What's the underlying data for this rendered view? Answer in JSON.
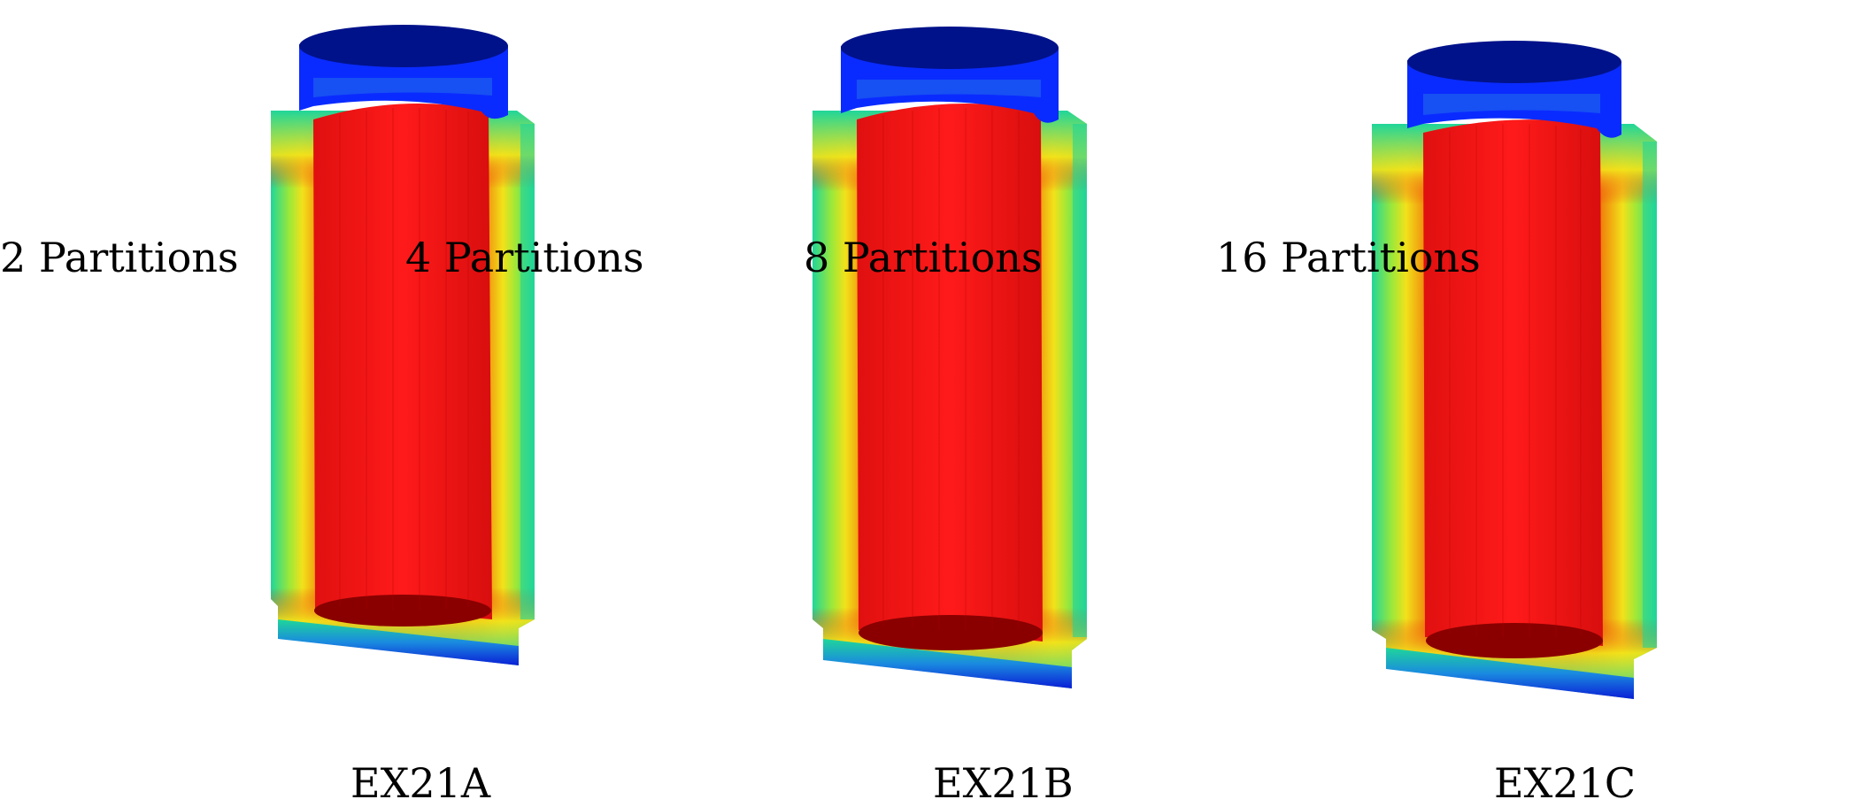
{
  "partition_labels": [
    "2 Partitions",
    "4 Partitions",
    "8 Partitions",
    "16 Partitions"
  ],
  "case_labels": [
    "EX21A",
    "EX21B",
    "EX21C"
  ],
  "colormap": {
    "cold": "#0a1fd6",
    "cold_dark": "#00128a",
    "cool": "#1fd69a",
    "warm": "#f2e21a",
    "hot_edge": "#f07a0a",
    "hot": "#f01010",
    "hot_dark": "#8a0000"
  }
}
